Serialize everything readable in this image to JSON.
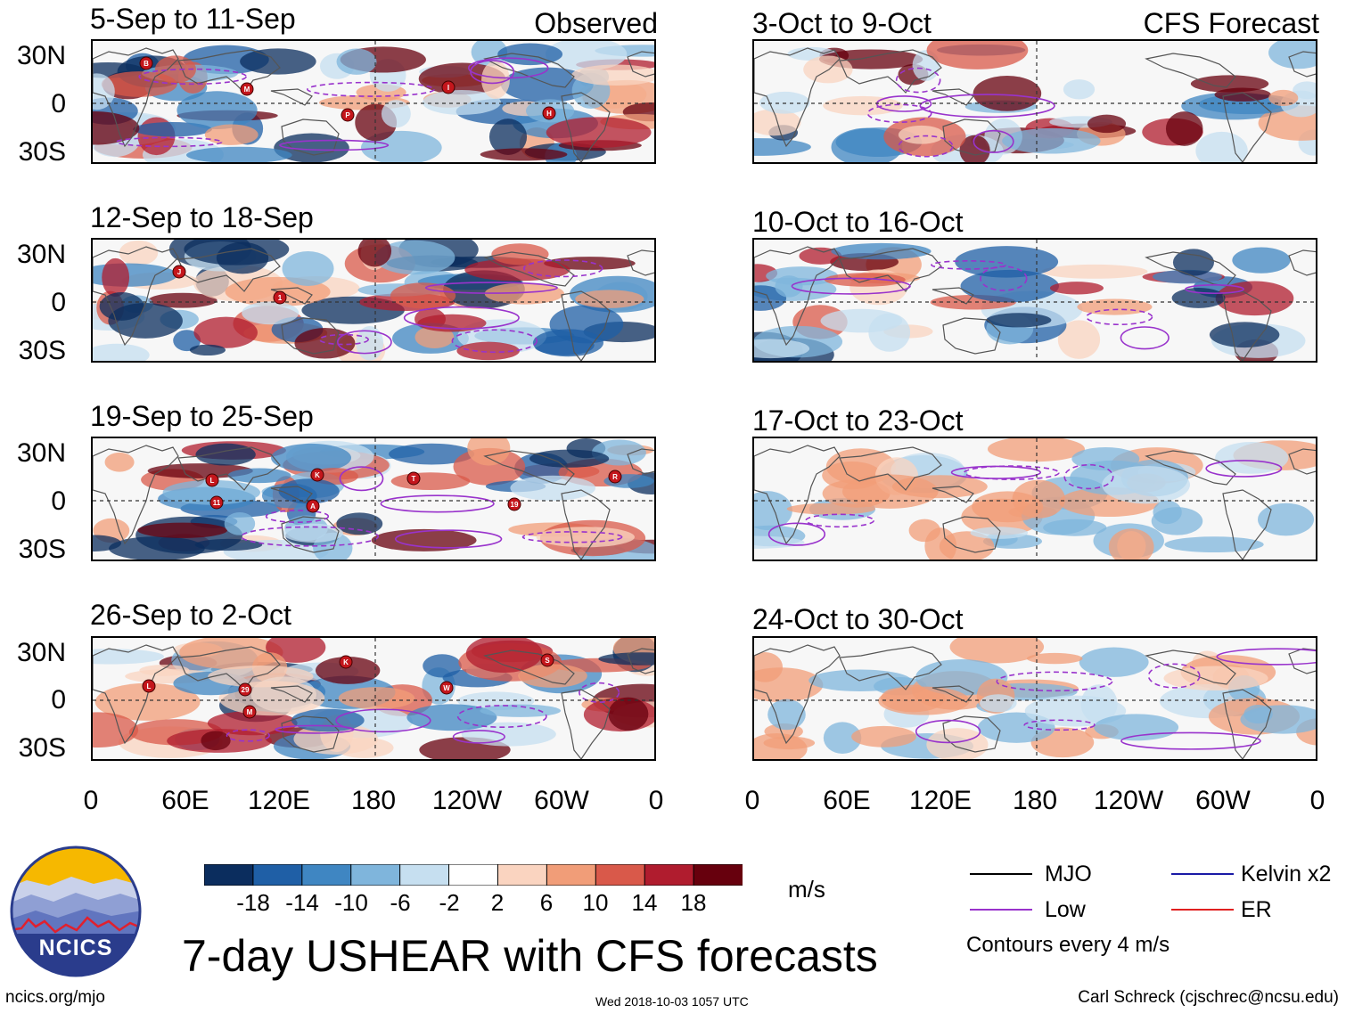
{
  "figure": {
    "title": "7-day USHEAR with CFS forecasts",
    "observed_label": "Observed",
    "forecast_label": "CFS Forecast",
    "site": "ncics.org/mjo",
    "timestamp": "Wed 2018-10-03 1057 UTC",
    "author": "Carl Schreck (cjschrec@ncsu.edu)",
    "logo_text": "NCICS"
  },
  "panels": [
    {
      "title": "5-Sep to 11-Sep",
      "type": "observed",
      "storms": [
        "B",
        "M",
        "P",
        "I",
        "H"
      ]
    },
    {
      "title": "12-Sep to 18-Sep",
      "type": "observed",
      "storms": [
        "J",
        "1"
      ]
    },
    {
      "title": "19-Sep to 25-Sep",
      "type": "observed",
      "storms": [
        "L",
        "A",
        "T",
        "19",
        "R",
        "11",
        "K"
      ]
    },
    {
      "title": "26-Sep to 2-Oct",
      "type": "observed",
      "storms": [
        "29",
        "K",
        "W",
        "S",
        "L",
        "M"
      ]
    },
    {
      "title": "3-Oct to 9-Oct",
      "type": "forecast",
      "storms": []
    },
    {
      "title": "10-Oct to 16-Oct",
      "type": "forecast",
      "storms": []
    },
    {
      "title": "17-Oct to 23-Oct",
      "type": "forecast",
      "storms": []
    },
    {
      "title": "24-Oct to 30-Oct",
      "type": "forecast",
      "storms": []
    }
  ],
  "axes": {
    "lat_ticks": [
      "30N",
      "0",
      "30S"
    ],
    "lon_ticks": [
      "0",
      "60E",
      "120E",
      "180",
      "120W",
      "60W",
      "0"
    ]
  },
  "colorbar": {
    "units": "m/s",
    "labels": [
      "-18",
      "-14",
      "-10",
      "-6",
      "-2",
      "2",
      "6",
      "10",
      "14",
      "18"
    ],
    "colors": [
      "#0b2d5e",
      "#1f5fa6",
      "#3f86c2",
      "#7fb5dc",
      "#c6dff0",
      "#ffffff",
      "#fad4c0",
      "#f19d78",
      "#d9594a",
      "#b01c2e",
      "#67000d"
    ]
  },
  "legend": {
    "items": [
      {
        "label": "MJO",
        "color": "#000000"
      },
      {
        "label": "Low",
        "color": "#9933cc"
      },
      {
        "label": "Kelvin x2",
        "color": "#1a1aa6"
      },
      {
        "label": "ER",
        "color": "#e02020"
      }
    ],
    "note": "Contours every 4 m/s"
  }
}
